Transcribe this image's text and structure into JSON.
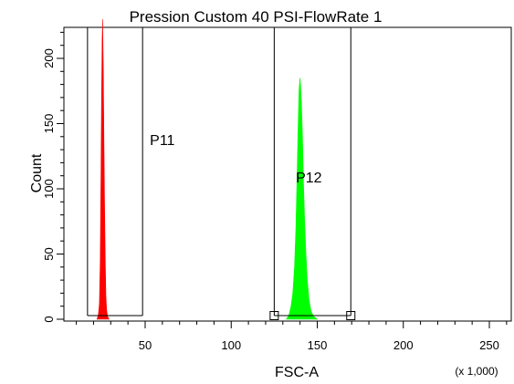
{
  "chart_data": {
    "type": "histogram",
    "title": "Pression Custom 40 PSI-FlowRate 1",
    "xlabel": "FSC-A",
    "ylabel": "Count",
    "x_scale_note": "(x 1,000)",
    "xlim": [
      0,
      262
    ],
    "ylim": [
      0,
      230
    ],
    "x_ticks": [
      50,
      100,
      150,
      200,
      250
    ],
    "x_tick_labels": [
      "50",
      "100",
      "150",
      "200",
      "250"
    ],
    "y_ticks": [
      0,
      50,
      100,
      150,
      200
    ],
    "y_tick_labels": [
      "0",
      "50",
      "100",
      "150",
      "200"
    ],
    "grid": false,
    "series": [
      {
        "color": "#ff0000",
        "points": [
          [
            22.0,
            0
          ],
          [
            22.8,
            3
          ],
          [
            23.4,
            12
          ],
          [
            23.9,
            45
          ],
          [
            24.3,
            110
          ],
          [
            24.7,
            175
          ],
          [
            25.0,
            215
          ],
          [
            25.3,
            230
          ],
          [
            25.7,
            190
          ],
          [
            26.0,
            140
          ],
          [
            26.4,
            90
          ],
          [
            26.8,
            45
          ],
          [
            27.2,
            18
          ],
          [
            27.6,
            7
          ],
          [
            28.2,
            2
          ],
          [
            29.0,
            0
          ]
        ]
      },
      {
        "color": "#00ff00",
        "points": [
          [
            132.0,
            0
          ],
          [
            133.5,
            3
          ],
          [
            134.8,
            10
          ],
          [
            135.8,
            20
          ],
          [
            136.8,
            40
          ],
          [
            137.6,
            70
          ],
          [
            138.3,
            110
          ],
          [
            138.9,
            150
          ],
          [
            139.4,
            175
          ],
          [
            139.9,
            185
          ],
          [
            140.3,
            180
          ],
          [
            140.8,
            165
          ],
          [
            141.4,
            140
          ],
          [
            142.0,
            105
          ],
          [
            142.7,
            75
          ],
          [
            143.4,
            50
          ],
          [
            144.2,
            30
          ],
          [
            145.2,
            15
          ],
          [
            146.4,
            6
          ],
          [
            148.0,
            2
          ],
          [
            150.0,
            0
          ]
        ]
      }
    ],
    "gates": [
      {
        "label": "P11",
        "x_min": 16.5,
        "x_max": 48.5
      },
      {
        "label": "P12",
        "x_min": 125.0,
        "x_max": 169.5
      }
    ]
  }
}
